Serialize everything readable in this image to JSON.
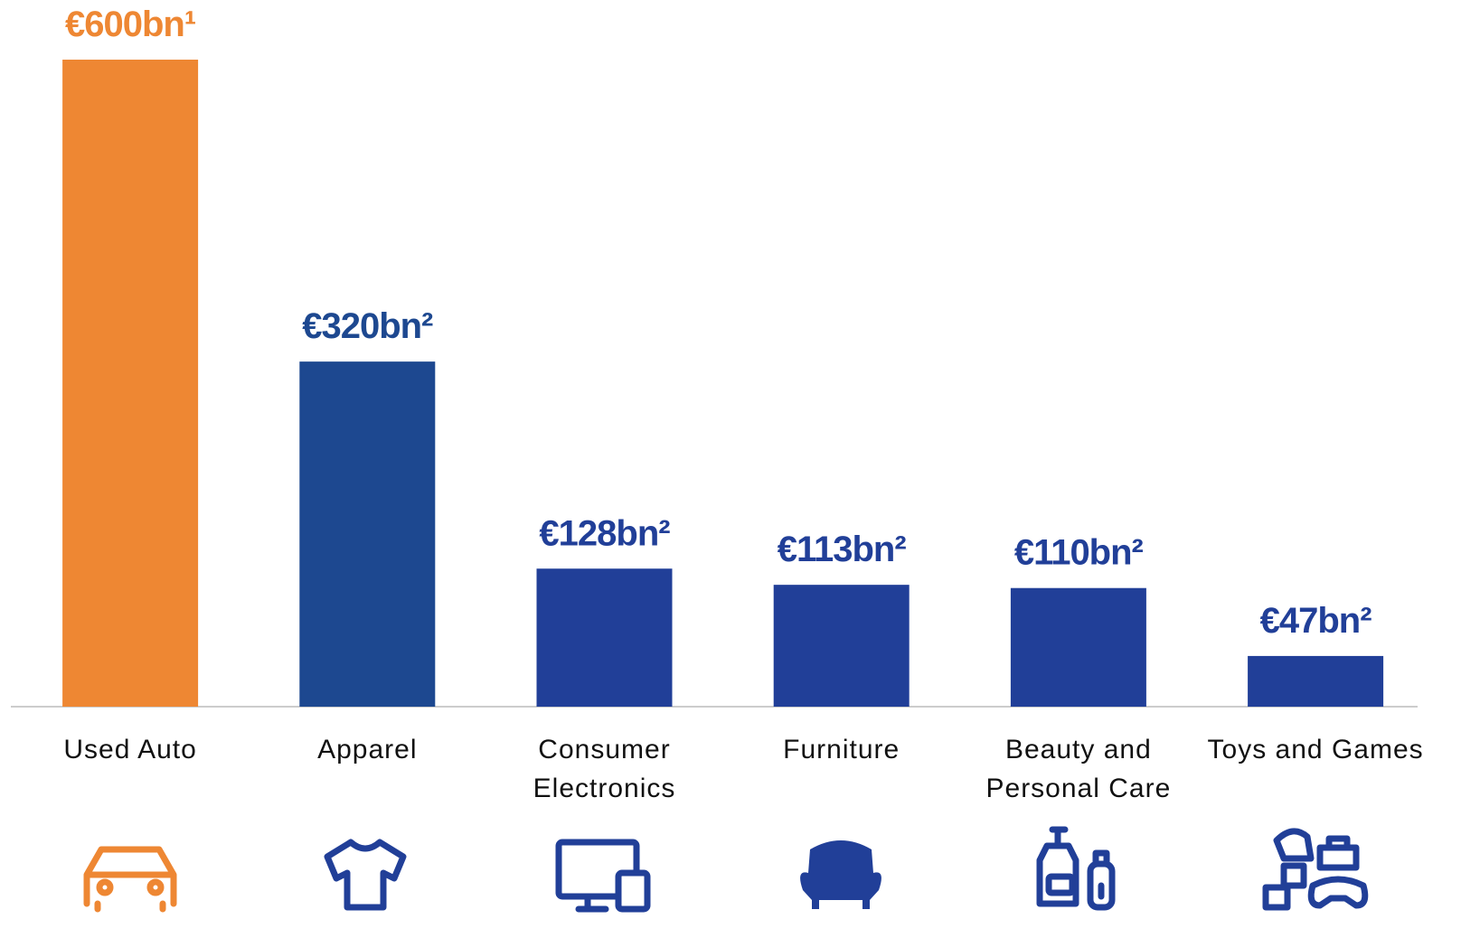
{
  "chart_data": {
    "type": "bar",
    "categories": [
      "Used Auto",
      "Apparel",
      "Consumer Electronics",
      "Furniture",
      "Beauty and Personal Care",
      "Toys and Games"
    ],
    "values": [
      600,
      320,
      128,
      113,
      110,
      47
    ],
    "value_labels": [
      "€600bn¹",
      "€320bn²",
      "€128bn²",
      "€113bn²",
      "€110bn²",
      "€47bn²"
    ],
    "colors": [
      "#ee8733",
      "#1d4890",
      "#213f98",
      "#213f98",
      "#213f98",
      "#213f98"
    ]
  }
}
